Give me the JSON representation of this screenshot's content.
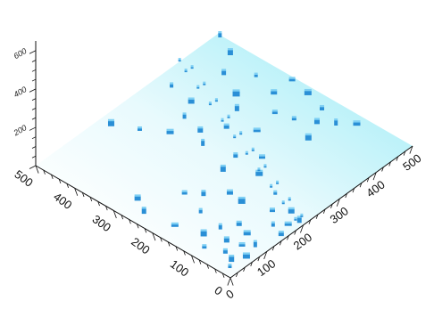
{
  "chart_data": {
    "type": "scatter",
    "projection": "3d-isometric",
    "title": "",
    "xlabel": "",
    "ylabel": "",
    "zlabel": "",
    "x_ticks": [
      "0",
      "100",
      "200",
      "300",
      "400",
      "500"
    ],
    "y_ticks": [
      "0",
      "100",
      "200",
      "300",
      "400",
      "500"
    ],
    "z_ticks": [
      "200",
      "400",
      "600"
    ],
    "xlim": [
      0,
      500
    ],
    "ylim": [
      0,
      500
    ],
    "zlim": [
      0,
      650
    ],
    "grid": false,
    "colors": {
      "plane_far": "#a8eef7",
      "plane_near": "#ffffff",
      "points": "#2a8fd6",
      "points_light": "#7fd0f4",
      "axes": "#111111"
    },
    "series": [
      {
        "values": [
          {
            "x": 20,
            "y": 20,
            "z": 4
          },
          {
            "x": 35,
            "y": 30,
            "z": 4
          },
          {
            "x": 60,
            "y": 15,
            "z": 4
          },
          {
            "x": 45,
            "y": 55,
            "z": 4
          },
          {
            "x": 80,
            "y": 45,
            "z": 4
          },
          {
            "x": 95,
            "y": 25,
            "z": 4
          },
          {
            "x": 70,
            "y": 75,
            "z": 4
          },
          {
            "x": 110,
            "y": 60,
            "z": 4
          },
          {
            "x": 30,
            "y": 95,
            "z": 4
          },
          {
            "x": 55,
            "y": 120,
            "z": 4
          },
          {
            "x": 90,
            "y": 110,
            "z": 4
          },
          {
            "x": 120,
            "y": 90,
            "z": 4
          },
          {
            "x": 40,
            "y": 180,
            "z": 4
          },
          {
            "x": 30,
            "y": 250,
            "z": 4
          },
          {
            "x": 50,
            "y": 285,
            "z": 4
          },
          {
            "x": 160,
            "y": 40,
            "z": 4
          },
          {
            "x": 190,
            "y": 70,
            "z": 4
          },
          {
            "x": 170,
            "y": 130,
            "z": 4
          },
          {
            "x": 140,
            "y": 200,
            "z": 4
          },
          {
            "x": 175,
            "y": 165,
            "z": 4
          },
          {
            "x": 230,
            "y": 100,
            "z": 4
          },
          {
            "x": 215,
            "y": 220,
            "z": 4
          },
          {
            "x": 250,
            "y": 160,
            "z": 4
          },
          {
            "x": 260,
            "y": 230,
            "z": 4
          },
          {
            "x": 290,
            "y": 190,
            "z": 4
          },
          {
            "x": 245,
            "y": 300,
            "z": 4
          },
          {
            "x": 270,
            "y": 330,
            "z": 4
          },
          {
            "x": 230,
            "y": 370,
            "z": 4
          },
          {
            "x": 200,
            "y": 420,
            "z": 4
          },
          {
            "x": 175,
            "y": 470,
            "z": 4
          },
          {
            "x": 280,
            "y": 380,
            "z": 4
          },
          {
            "x": 310,
            "y": 300,
            "z": 4
          },
          {
            "x": 340,
            "y": 250,
            "z": 4
          },
          {
            "x": 360,
            "y": 320,
            "z": 4
          },
          {
            "x": 320,
            "y": 400,
            "z": 4
          },
          {
            "x": 330,
            "y": 460,
            "z": 4
          },
          {
            "x": 400,
            "y": 260,
            "z": 4
          },
          {
            "x": 390,
            "y": 350,
            "z": 4
          },
          {
            "x": 420,
            "y": 410,
            "z": 4
          },
          {
            "x": 440,
            "y": 300,
            "z": 4
          },
          {
            "x": 455,
            "y": 360,
            "z": 4
          },
          {
            "x": 470,
            "y": 440,
            "z": 4
          },
          {
            "x": 480,
            "y": 250,
            "z": 4
          },
          {
            "x": 465,
            "y": 200,
            "z": 4
          },
          {
            "x": 490,
            "y": 300,
            "z": 4
          },
          {
            "x": 450,
            "y": 150,
            "z": 4
          },
          {
            "x": 430,
            "y": 180,
            "z": 4
          },
          {
            "x": 475,
            "y": 120,
            "z": 4
          },
          {
            "x": 410,
            "y": 220,
            "z": 4
          },
          {
            "x": 385,
            "y": 160,
            "z": 4
          },
          {
            "x": 495,
            "y": 490,
            "z": 4
          },
          {
            "x": 150,
            "y": 10,
            "z": 4
          },
          {
            "x": 180,
            "y": 20,
            "z": 4
          },
          {
            "x": 200,
            "y": 10,
            "z": 4
          },
          {
            "x": 210,
            "y": 40,
            "z": 4
          },
          {
            "x": 100,
            "y": 170,
            "z": 4
          },
          {
            "x": 120,
            "y": 230,
            "z": 4
          }
        ]
      },
      {
        "values": [
          {
            "x": 200,
            "y": 20,
            "z": 4
          },
          {
            "x": 220,
            "y": 70,
            "z": 4
          },
          {
            "x": 240,
            "y": 120,
            "z": 4
          },
          {
            "x": 260,
            "y": 170,
            "z": 4
          },
          {
            "x": 280,
            "y": 220,
            "z": 4
          },
          {
            "x": 300,
            "y": 270,
            "z": 4
          },
          {
            "x": 320,
            "y": 320,
            "z": 4
          },
          {
            "x": 340,
            "y": 370,
            "z": 4
          },
          {
            "x": 360,
            "y": 420,
            "z": 4
          },
          {
            "x": 380,
            "y": 470,
            "z": 4
          },
          {
            "x": 395,
            "y": 500,
            "z": 4
          },
          {
            "x": 215,
            "y": 18,
            "z": 4
          },
          {
            "x": 235,
            "y": 68,
            "z": 4
          },
          {
            "x": 255,
            "y": 118,
            "z": 4
          },
          {
            "x": 275,
            "y": 168,
            "z": 4
          },
          {
            "x": 295,
            "y": 218,
            "z": 4
          },
          {
            "x": 315,
            "y": 268,
            "z": 4
          },
          {
            "x": 335,
            "y": 318,
            "z": 4
          },
          {
            "x": 355,
            "y": 368,
            "z": 4
          },
          {
            "x": 375,
            "y": 418,
            "z": 4
          },
          {
            "x": 395,
            "y": 468,
            "z": 4
          }
        ]
      }
    ]
  }
}
